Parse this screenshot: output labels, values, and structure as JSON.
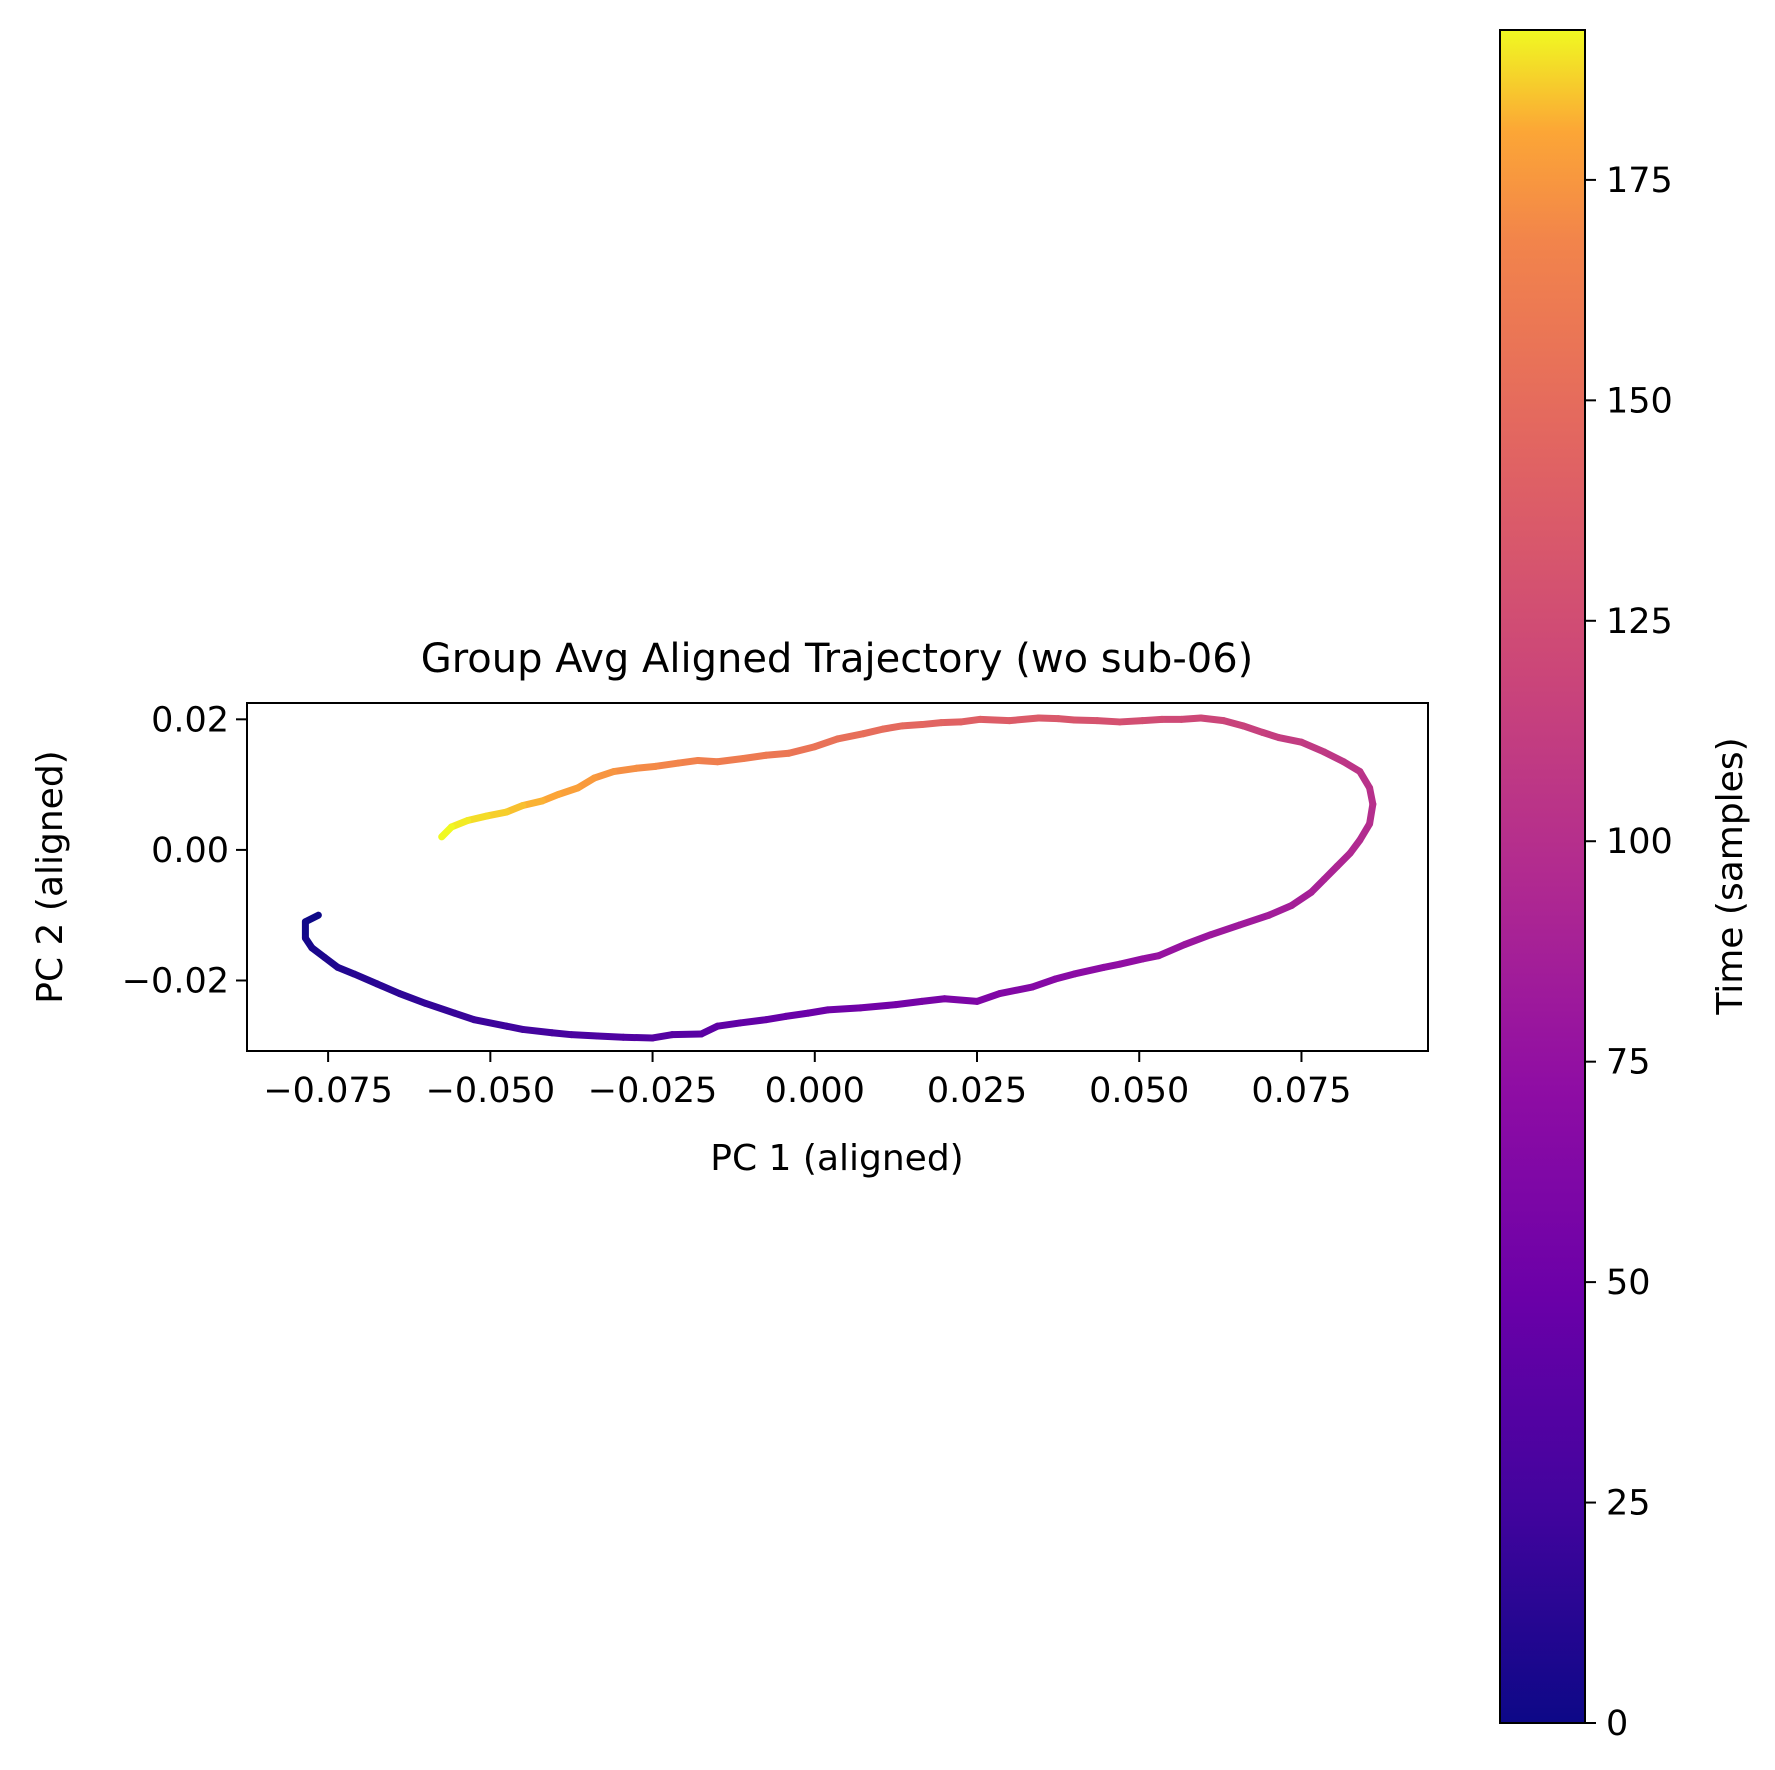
{
  "chart_data": {
    "type": "line",
    "title": "Group Avg Aligned Trajectory (wo sub-06)",
    "xlabel": "PC 1 (aligned)",
    "ylabel": "PC 2 (aligned)",
    "xlim": [
      -0.0875,
      0.0945
    ],
    "ylim": [
      -0.0308,
      0.0225
    ],
    "xticks": [
      -0.075,
      -0.05,
      -0.025,
      0.0,
      0.025,
      0.05,
      0.075
    ],
    "xtick_labels": [
      "−0.075",
      "−0.050",
      "−0.025",
      "0.000",
      "0.025",
      "0.050",
      "0.075"
    ],
    "yticks": [
      0.02,
      0.0,
      -0.02
    ],
    "ytick_labels": [
      "0.02",
      "0.00",
      "−0.02"
    ],
    "grid": false,
    "colormap": "plasma",
    "colorbar": {
      "label": "Time (samples)",
      "range": [
        0,
        192
      ],
      "ticks": [
        0,
        25,
        50,
        75,
        100,
        125,
        150,
        175
      ],
      "tick_labels": [
        "0",
        "25",
        "50",
        "75",
        "100",
        "125",
        "150",
        "175"
      ]
    },
    "series": [
      {
        "x": [
          -0.0765,
          -0.0785,
          -0.0785,
          -0.0775,
          -0.0755,
          -0.0735,
          -0.071,
          -0.0675,
          -0.064,
          -0.06,
          -0.0555,
          -0.0525,
          -0.0475,
          -0.045,
          -0.0405,
          -0.0375,
          -0.0335,
          -0.0295,
          -0.025,
          -0.022,
          -0.0175,
          -0.015,
          -0.0115,
          -0.0075,
          -0.0045,
          -0.001,
          0.002,
          0.007,
          0.0125,
          0.0165,
          0.02,
          0.025,
          0.0285,
          0.0335,
          0.037,
          0.04,
          0.0445,
          0.047,
          0.0505,
          0.053,
          0.057,
          0.061,
          0.0655,
          0.07,
          0.0735,
          0.0765,
          0.0785,
          0.0805,
          0.0825,
          0.084,
          0.0855,
          0.086,
          0.0855,
          0.084,
          0.0815,
          0.0785,
          0.075,
          0.0715,
          0.069,
          0.066,
          0.063,
          0.0595,
          0.0565,
          0.0535,
          0.0505,
          0.047,
          0.0435,
          0.04,
          0.0375,
          0.0345,
          0.03,
          0.0255,
          0.0225,
          0.0195,
          0.0165,
          0.0135,
          0.0105,
          0.0075,
          0.0035,
          0.0,
          -0.004,
          -0.0075,
          -0.011,
          -0.015,
          -0.018,
          -0.021,
          -0.0245,
          -0.0275,
          -0.031,
          -0.034,
          -0.0365,
          -0.0395,
          -0.042,
          -0.045,
          -0.0475,
          -0.0505,
          -0.0535,
          -0.056,
          -0.0575
        ],
        "y": [
          -0.01,
          -0.011,
          -0.0135,
          -0.015,
          -0.0165,
          -0.018,
          -0.019,
          -0.0205,
          -0.022,
          -0.0235,
          -0.025,
          -0.026,
          -0.027,
          -0.0275,
          -0.028,
          -0.0283,
          -0.0285,
          -0.0287,
          -0.0288,
          -0.0283,
          -0.0282,
          -0.027,
          -0.0265,
          -0.026,
          -0.0255,
          -0.025,
          -0.0245,
          -0.0242,
          -0.0237,
          -0.0232,
          -0.0228,
          -0.0232,
          -0.022,
          -0.021,
          -0.0198,
          -0.019,
          -0.018,
          -0.0175,
          -0.0167,
          -0.0162,
          -0.0145,
          -0.013,
          -0.0115,
          -0.01,
          -0.0085,
          -0.0065,
          -0.0045,
          -0.0025,
          -0.0005,
          0.0015,
          0.004,
          0.007,
          0.0095,
          0.012,
          0.0135,
          0.015,
          0.0165,
          0.0172,
          0.018,
          0.019,
          0.0198,
          0.0202,
          0.02,
          0.02,
          0.0198,
          0.0196,
          0.0198,
          0.0199,
          0.0201,
          0.0202,
          0.0198,
          0.02,
          0.0196,
          0.0195,
          0.0192,
          0.019,
          0.0185,
          0.0178,
          0.017,
          0.0158,
          0.0148,
          0.0145,
          0.014,
          0.0135,
          0.0137,
          0.0133,
          0.0128,
          0.0125,
          0.012,
          0.011,
          0.0095,
          0.0085,
          0.0075,
          0.0068,
          0.0058,
          0.0052,
          0.0045,
          0.0035,
          0.002
        ]
      }
    ]
  }
}
